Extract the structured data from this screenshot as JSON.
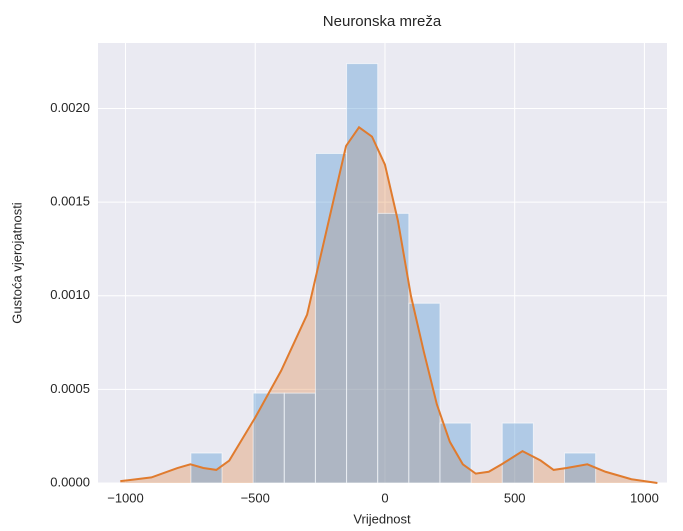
{
  "chart_data": {
    "type": "histogram",
    "title": "Neuronska mreža",
    "x_label": "Vrijednost",
    "y_label": "Gustoća vjerojatnosti",
    "bins": [
      -748,
      -628,
      -508,
      -388,
      -268,
      -148,
      -28,
      92,
      212,
      332,
      452,
      572,
      692,
      812
    ],
    "values": [
      0.00016,
      0,
      0.00048,
      0.00048,
      0.00176,
      0.00224,
      0.00144,
      0.00096,
      0.00032,
      0,
      0.00032,
      0,
      0.00016
    ],
    "color": "#5a9bd4",
    "kde": {
      "color": "#e07b2e",
      "x": [
        -1020,
        -900,
        -800,
        -750,
        -700,
        -650,
        -600,
        -500,
        -400,
        -300,
        -250,
        -200,
        -150,
        -100,
        -50,
        0,
        50,
        100,
        150,
        200,
        250,
        300,
        350,
        400,
        450,
        530,
        600,
        650,
        700,
        780,
        850,
        950,
        1050
      ],
      "values": [
        1e-05,
        3e-05,
        8e-05,
        0.0001,
        8e-05,
        7e-05,
        0.00012,
        0.00035,
        0.0006,
        0.0009,
        0.0012,
        0.0015,
        0.0018,
        0.0019,
        0.00185,
        0.0017,
        0.0014,
        0.001,
        0.0007,
        0.00042,
        0.00022,
        0.0001,
        5e-05,
        6e-05,
        0.0001,
        0.00017,
        0.00012,
        7e-05,
        8e-05,
        0.0001,
        6e-05,
        2e-05,
        0
      ]
    },
    "xlim": [
      -1106,
      1087
    ],
    "ylim": [
      0,
      0.00235
    ],
    "xticks": [
      {
        "value": -1000,
        "label": "−1000"
      },
      {
        "value": -500,
        "label": "−500"
      },
      0,
      500,
      1000
    ],
    "yticks": [
      {
        "value": 0,
        "label": "0.0000"
      },
      {
        "value": 0.0005,
        "label": "0.0005"
      },
      {
        "value": 0.001,
        "label": "0.0010"
      },
      {
        "value": 0.0015,
        "label": "0.0015"
      },
      {
        "value": 0.002,
        "label": "0.0020"
      }
    ],
    "grid": true
  }
}
